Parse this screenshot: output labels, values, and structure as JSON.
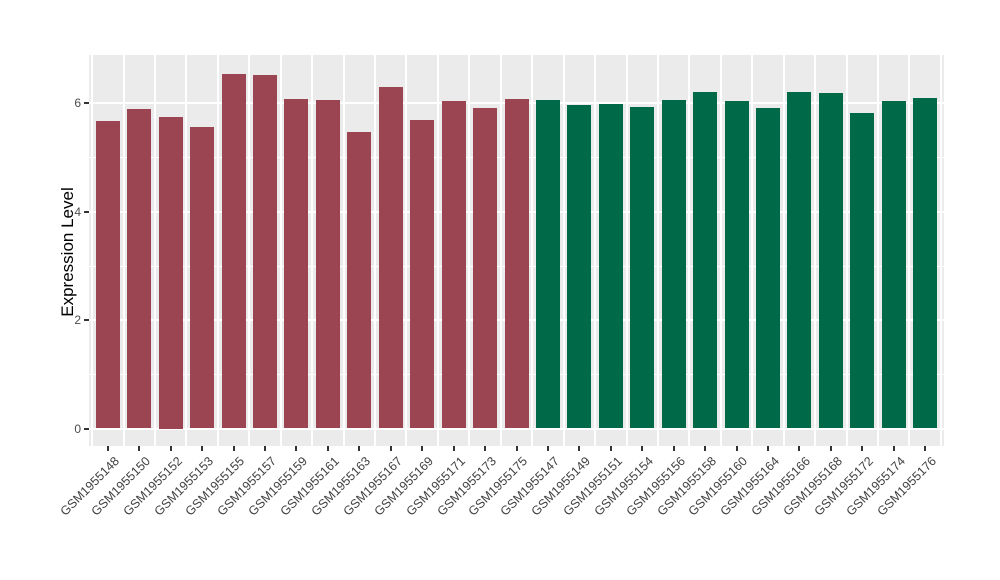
{
  "chart_data": {
    "type": "bar",
    "title": "",
    "xlabel": "",
    "ylabel": "Expression Level",
    "yticks": [
      0,
      2,
      4,
      6
    ],
    "yminor": [
      1,
      3,
      5
    ],
    "ylim": [
      0,
      6.88
    ],
    "grid": true,
    "legend": false,
    "panel_bg": "#EBEBEB",
    "grid_color": "#FFFFFF",
    "groups": [
      {
        "name": "group-1-red",
        "color": "#9C4552"
      },
      {
        "name": "group-2-green",
        "color": "#006948"
      }
    ],
    "categories": [
      "GSM1955148",
      "GSM1955150",
      "GSM1955152",
      "GSM1955153",
      "GSM1955155",
      "GSM1955157",
      "GSM1955159",
      "GSM1955161",
      "GSM1955163",
      "GSM1955167",
      "GSM1955169",
      "GSM1955171",
      "GSM1955173",
      "GSM1955175",
      "GSM1955147",
      "GSM1955149",
      "GSM1955151",
      "GSM1955154",
      "GSM1955156",
      "GSM1955158",
      "GSM1955160",
      "GSM1955164",
      "GSM1955166",
      "GSM1955168",
      "GSM1955172",
      "GSM1955174",
      "GSM1955176"
    ],
    "values": [
      5.66,
      5.89,
      5.75,
      5.55,
      6.53,
      6.52,
      6.07,
      6.05,
      5.47,
      6.3,
      5.68,
      6.03,
      5.9,
      6.07,
      6.06,
      5.97,
      5.99,
      5.93,
      6.06,
      6.2,
      6.04,
      5.91,
      6.2,
      6.18,
      5.81,
      6.04,
      6.09
    ],
    "bar_groups": [
      0,
      0,
      0,
      0,
      0,
      0,
      0,
      0,
      0,
      0,
      0,
      0,
      0,
      0,
      1,
      1,
      1,
      1,
      1,
      1,
      1,
      1,
      1,
      1,
      1,
      1,
      1
    ]
  }
}
